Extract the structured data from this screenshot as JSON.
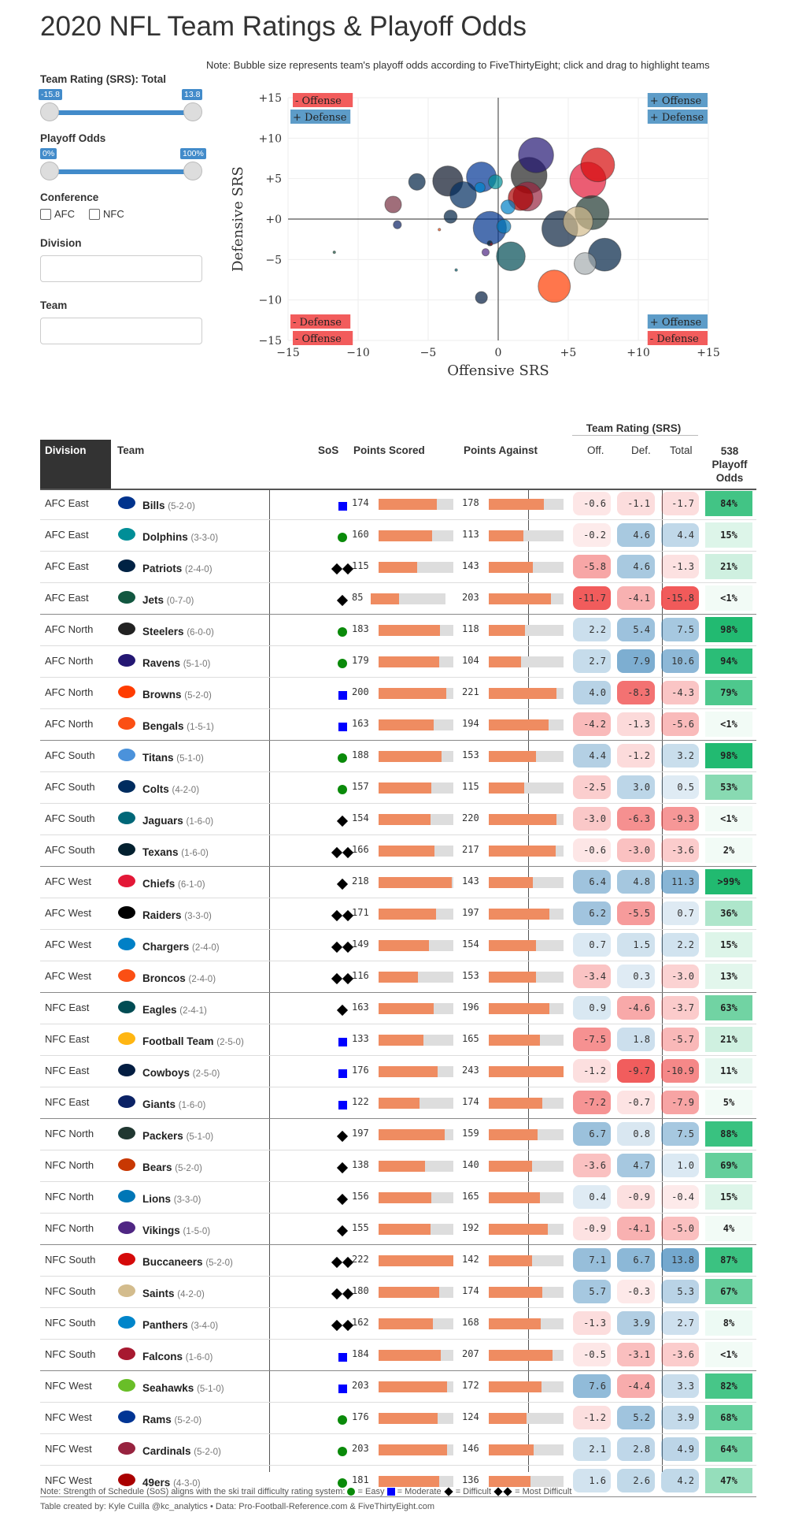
{
  "page": {
    "title": "2020 NFL Team Ratings & Playoff Odds",
    "note": "Note: Bubble size represents team's playoff odds according to FiveThirtyEight; click and drag to highlight teams"
  },
  "sidebar": {
    "rating_label": "Team Rating (SRS): Total",
    "rating_min": "-15.8",
    "rating_max": "13.8",
    "odds_label": "Playoff Odds",
    "odds_min": "0%",
    "odds_max": "100%",
    "conference_label": "Conference",
    "afc_label": "AFC",
    "nfc_label": "NFC",
    "division_label": "Division",
    "team_label": "Team"
  },
  "chart_data": {
    "type": "scatter",
    "xlabel": "Offensive SRS",
    "ylabel": "Defensive SRS",
    "xlim": [
      -15,
      15
    ],
    "ylim": [
      -15,
      15
    ],
    "x_ticks": [
      "−15",
      "−10",
      "−5",
      "0",
      "+5",
      "+10",
      "+15"
    ],
    "y_ticks": [
      "+15",
      "+10",
      "+5",
      "+0",
      "−5",
      "−10",
      "−15"
    ],
    "quadrant_labels": {
      "top_left": [
        "- Offense",
        "+ Defense"
      ],
      "top_right": [
        "+ Offense",
        "+ Defense"
      ],
      "bottom_left": [
        "- Defense",
        "- Offense"
      ],
      "bottom_right": [
        "+ Offense",
        "- Defense"
      ]
    },
    "points": [
      {
        "team": "Bills",
        "x": -0.6,
        "y": -1.1,
        "odds": 84,
        "color": "#00338d"
      },
      {
        "team": "Dolphins",
        "x": -0.2,
        "y": 4.6,
        "odds": 15,
        "color": "#008e97"
      },
      {
        "team": "Patriots",
        "x": -5.8,
        "y": 4.6,
        "odds": 21,
        "color": "#002244"
      },
      {
        "team": "Jets",
        "x": -11.7,
        "y": -4.1,
        "odds": 0.5,
        "color": "#125740"
      },
      {
        "team": "Steelers",
        "x": 2.2,
        "y": 5.4,
        "odds": 98,
        "color": "#222222"
      },
      {
        "team": "Ravens",
        "x": 2.7,
        "y": 7.9,
        "odds": 94,
        "color": "#241773"
      },
      {
        "team": "Browns",
        "x": 4.0,
        "y": -8.3,
        "odds": 79,
        "color": "#ff3c00"
      },
      {
        "team": "Bengals",
        "x": -4.2,
        "y": -1.3,
        "odds": 0.5,
        "color": "#fb4f14"
      },
      {
        "team": "Titans",
        "x": 4.4,
        "y": -1.2,
        "odds": 98,
        "color": "#0c2340"
      },
      {
        "team": "Colts",
        "x": -2.5,
        "y": 3.0,
        "odds": 53,
        "color": "#002c5f"
      },
      {
        "team": "Jaguars",
        "x": -3.0,
        "y": -6.3,
        "odds": 0.5,
        "color": "#006778"
      },
      {
        "team": "Texans",
        "x": -0.6,
        "y": -3.0,
        "odds": 2,
        "color": "#03202f"
      },
      {
        "team": "Chiefs",
        "x": 6.4,
        "y": 4.8,
        "odds": 99,
        "color": "#e31837"
      },
      {
        "team": "Raiders",
        "x": 6.2,
        "y": -5.5,
        "odds": 36,
        "color": "#a5acaf"
      },
      {
        "team": "Chargers",
        "x": 0.7,
        "y": 1.5,
        "odds": 15,
        "color": "#0080c6"
      },
      {
        "team": "Broncos",
        "x": -3.4,
        "y": 0.3,
        "odds": 13,
        "color": "#002244"
      },
      {
        "team": "Eagles",
        "x": 0.9,
        "y": -4.6,
        "odds": 63,
        "color": "#004c54"
      },
      {
        "team": "Football Team",
        "x": -7.5,
        "y": 1.8,
        "odds": 21,
        "color": "#773141"
      },
      {
        "team": "Cowboys",
        "x": -1.2,
        "y": -9.7,
        "odds": 11,
        "color": "#041e42"
      },
      {
        "team": "Giants",
        "x": -7.2,
        "y": -0.7,
        "odds": 5,
        "color": "#0b2265"
      },
      {
        "team": "Packers",
        "x": 6.7,
        "y": 0.8,
        "odds": 88,
        "color": "#203731"
      },
      {
        "team": "Bears",
        "x": -3.6,
        "y": 4.7,
        "odds": 69,
        "color": "#0b162a"
      },
      {
        "team": "Lions",
        "x": 0.4,
        "y": -0.9,
        "odds": 15,
        "color": "#0076b6"
      },
      {
        "team": "Vikings",
        "x": -0.9,
        "y": -4.1,
        "odds": 4,
        "color": "#4f2683"
      },
      {
        "team": "Buccaneers",
        "x": 7.1,
        "y": 6.7,
        "odds": 87,
        "color": "#d50a0a"
      },
      {
        "team": "Saints",
        "x": 5.7,
        "y": -0.3,
        "odds": 67,
        "color": "#d3bc8d"
      },
      {
        "team": "Panthers",
        "x": -1.3,
        "y": 3.9,
        "odds": 8,
        "color": "#0085ca"
      },
      {
        "team": "Falcons",
        "x": -0.5,
        "y": -3.1,
        "odds": 0.5,
        "color": "#a71930"
      },
      {
        "team": "Seahawks",
        "x": 7.6,
        "y": -4.4,
        "odds": 82,
        "color": "#002244"
      },
      {
        "team": "Rams",
        "x": -1.2,
        "y": 5.2,
        "odds": 68,
        "color": "#003594"
      },
      {
        "team": "Cardinals",
        "x": 2.1,
        "y": 2.8,
        "odds": 64,
        "color": "#97233f"
      },
      {
        "team": "49ers",
        "x": 1.6,
        "y": 2.6,
        "odds": 47,
        "color": "#aa0000"
      }
    ]
  },
  "table": {
    "group_header": "Team Rating (SRS)",
    "headers": {
      "division": "Division",
      "team": "Team",
      "sos": "SoS",
      "points_scored": "Points Scored",
      "points_against": "Points Against",
      "off": "Off.",
      "def": "Def.",
      "total": "Total",
      "odds": "538 Playoff Odds"
    },
    "rows": [
      {
        "division": "AFC East",
        "team": "Bills",
        "record": "(5-2-0)",
        "sos": "square",
        "ps": 174,
        "pa": 178,
        "off": "-0.6",
        "def": "-1.1",
        "total": "-1.7",
        "odds": "84%",
        "odds_val": 84,
        "logo": "#00338d"
      },
      {
        "division": "AFC East",
        "team": "Dolphins",
        "record": "(3-3-0)",
        "sos": "circle",
        "ps": 160,
        "pa": 113,
        "off": "-0.2",
        "def": "4.6",
        "total": "4.4",
        "odds": "15%",
        "odds_val": 15,
        "logo": "#008e97"
      },
      {
        "division": "AFC East",
        "team": "Patriots",
        "record": "(2-4-0)",
        "sos": "double",
        "ps": 115,
        "pa": 143,
        "off": "-5.8",
        "def": "4.6",
        "total": "-1.3",
        "odds": "21%",
        "odds_val": 21,
        "logo": "#002244"
      },
      {
        "division": "AFC East",
        "team": "Jets",
        "record": "(0-7-0)",
        "sos": "diamond",
        "ps": 85,
        "pa": 203,
        "off": "-11.7",
        "def": "-4.1",
        "total": "-15.8",
        "odds": "<1%",
        "odds_val": 0,
        "logo": "#125740"
      },
      {
        "division": "AFC North",
        "team": "Steelers",
        "record": "(6-0-0)",
        "sos": "circle",
        "ps": 183,
        "pa": 118,
        "off": "2.2",
        "def": "5.4",
        "total": "7.5",
        "odds": "98%",
        "odds_val": 98,
        "logo": "#222222"
      },
      {
        "division": "AFC North",
        "team": "Ravens",
        "record": "(5-1-0)",
        "sos": "circle",
        "ps": 179,
        "pa": 104,
        "off": "2.7",
        "def": "7.9",
        "total": "10.6",
        "odds": "94%",
        "odds_val": 94,
        "logo": "#241773"
      },
      {
        "division": "AFC North",
        "team": "Browns",
        "record": "(5-2-0)",
        "sos": "square",
        "ps": 200,
        "pa": 221,
        "off": "4.0",
        "def": "-8.3",
        "total": "-4.3",
        "odds": "79%",
        "odds_val": 79,
        "logo": "#ff3c00"
      },
      {
        "division": "AFC North",
        "team": "Bengals",
        "record": "(1-5-1)",
        "sos": "square",
        "ps": 163,
        "pa": 194,
        "off": "-4.2",
        "def": "-1.3",
        "total": "-5.6",
        "odds": "<1%",
        "odds_val": 0,
        "logo": "#fb4f14"
      },
      {
        "division": "AFC South",
        "team": "Titans",
        "record": "(5-1-0)",
        "sos": "circle",
        "ps": 188,
        "pa": 153,
        "off": "4.4",
        "def": "-1.2",
        "total": "3.2",
        "odds": "98%",
        "odds_val": 98,
        "logo": "#4b92db"
      },
      {
        "division": "AFC South",
        "team": "Colts",
        "record": "(4-2-0)",
        "sos": "circle",
        "ps": 157,
        "pa": 115,
        "off": "-2.5",
        "def": "3.0",
        "total": "0.5",
        "odds": "53%",
        "odds_val": 53,
        "logo": "#002c5f"
      },
      {
        "division": "AFC South",
        "team": "Jaguars",
        "record": "(1-6-0)",
        "sos": "diamond",
        "ps": 154,
        "pa": 220,
        "off": "-3.0",
        "def": "-6.3",
        "total": "-9.3",
        "odds": "<1%",
        "odds_val": 0,
        "logo": "#006778"
      },
      {
        "division": "AFC South",
        "team": "Texans",
        "record": "(1-6-0)",
        "sos": "double",
        "ps": 166,
        "pa": 217,
        "off": "-0.6",
        "def": "-3.0",
        "total": "-3.6",
        "odds": "2%",
        "odds_val": 2,
        "logo": "#03202f"
      },
      {
        "division": "AFC West",
        "team": "Chiefs",
        "record": "(6-1-0)",
        "sos": "diamond",
        "ps": 218,
        "pa": 143,
        "off": "6.4",
        "def": "4.8",
        "total": "11.3",
        "odds": ">99%",
        "odds_val": 99,
        "logo": "#e31837"
      },
      {
        "division": "AFC West",
        "team": "Raiders",
        "record": "(3-3-0)",
        "sos": "double",
        "ps": 171,
        "pa": 197,
        "off": "6.2",
        "def": "-5.5",
        "total": "0.7",
        "odds": "36%",
        "odds_val": 36,
        "logo": "#000000"
      },
      {
        "division": "AFC West",
        "team": "Chargers",
        "record": "(2-4-0)",
        "sos": "double",
        "ps": 149,
        "pa": 154,
        "off": "0.7",
        "def": "1.5",
        "total": "2.2",
        "odds": "15%",
        "odds_val": 15,
        "logo": "#0080c6"
      },
      {
        "division": "AFC West",
        "team": "Broncos",
        "record": "(2-4-0)",
        "sos": "double",
        "ps": 116,
        "pa": 153,
        "off": "-3.4",
        "def": "0.3",
        "total": "-3.0",
        "odds": "13%",
        "odds_val": 13,
        "logo": "#fb4f14"
      },
      {
        "division": "NFC East",
        "team": "Eagles",
        "record": "(2-4-1)",
        "sos": "diamond",
        "ps": 163,
        "pa": 196,
        "off": "0.9",
        "def": "-4.6",
        "total": "-3.7",
        "odds": "63%",
        "odds_val": 63,
        "logo": "#004c54"
      },
      {
        "division": "NFC East",
        "team": "Football Team",
        "record": "(2-5-0)",
        "sos": "square",
        "ps": 133,
        "pa": 165,
        "off": "-7.5",
        "def": "1.8",
        "total": "-5.7",
        "odds": "21%",
        "odds_val": 21,
        "logo": "#ffb612"
      },
      {
        "division": "NFC East",
        "team": "Cowboys",
        "record": "(2-5-0)",
        "sos": "square",
        "ps": 176,
        "pa": 243,
        "off": "-1.2",
        "def": "-9.7",
        "total": "-10.9",
        "odds": "11%",
        "odds_val": 11,
        "logo": "#041e42"
      },
      {
        "division": "NFC East",
        "team": "Giants",
        "record": "(1-6-0)",
        "sos": "square",
        "ps": 122,
        "pa": 174,
        "off": "-7.2",
        "def": "-0.7",
        "total": "-7.9",
        "odds": "5%",
        "odds_val": 5,
        "logo": "#0b2265"
      },
      {
        "division": "NFC North",
        "team": "Packers",
        "record": "(5-1-0)",
        "sos": "diamond",
        "ps": 197,
        "pa": 159,
        "off": "6.7",
        "def": "0.8",
        "total": "7.5",
        "odds": "88%",
        "odds_val": 88,
        "logo": "#203731"
      },
      {
        "division": "NFC North",
        "team": "Bears",
        "record": "(5-2-0)",
        "sos": "diamond",
        "ps": 138,
        "pa": 140,
        "off": "-3.6",
        "def": "4.7",
        "total": "1.0",
        "odds": "69%",
        "odds_val": 69,
        "logo": "#c83803"
      },
      {
        "division": "NFC North",
        "team": "Lions",
        "record": "(3-3-0)",
        "sos": "diamond",
        "ps": 156,
        "pa": 165,
        "off": "0.4",
        "def": "-0.9",
        "total": "-0.4",
        "odds": "15%",
        "odds_val": 15,
        "logo": "#0076b6"
      },
      {
        "division": "NFC North",
        "team": "Vikings",
        "record": "(1-5-0)",
        "sos": "diamond",
        "ps": 155,
        "pa": 192,
        "off": "-0.9",
        "def": "-4.1",
        "total": "-5.0",
        "odds": "4%",
        "odds_val": 4,
        "logo": "#4f2683"
      },
      {
        "division": "NFC South",
        "team": "Buccaneers",
        "record": "(5-2-0)",
        "sos": "double",
        "ps": 222,
        "pa": 142,
        "off": "7.1",
        "def": "6.7",
        "total": "13.8",
        "odds": "87%",
        "odds_val": 87,
        "logo": "#d50a0a"
      },
      {
        "division": "NFC South",
        "team": "Saints",
        "record": "(4-2-0)",
        "sos": "double",
        "ps": 180,
        "pa": 174,
        "off": "5.7",
        "def": "-0.3",
        "total": "5.3",
        "odds": "67%",
        "odds_val": 67,
        "logo": "#d3bc8d"
      },
      {
        "division": "NFC South",
        "team": "Panthers",
        "record": "(3-4-0)",
        "sos": "double",
        "ps": 162,
        "pa": 168,
        "off": "-1.3",
        "def": "3.9",
        "total": "2.7",
        "odds": "8%",
        "odds_val": 8,
        "logo": "#0085ca"
      },
      {
        "division": "NFC South",
        "team": "Falcons",
        "record": "(1-6-0)",
        "sos": "square",
        "ps": 184,
        "pa": 207,
        "off": "-0.5",
        "def": "-3.1",
        "total": "-3.6",
        "odds": "<1%",
        "odds_val": 0,
        "logo": "#a71930"
      },
      {
        "division": "NFC West",
        "team": "Seahawks",
        "record": "(5-1-0)",
        "sos": "square",
        "ps": 203,
        "pa": 172,
        "off": "7.6",
        "def": "-4.4",
        "total": "3.3",
        "odds": "82%",
        "odds_val": 82,
        "logo": "#69be28"
      },
      {
        "division": "NFC West",
        "team": "Rams",
        "record": "(5-2-0)",
        "sos": "circle",
        "ps": 176,
        "pa": 124,
        "off": "-1.2",
        "def": "5.2",
        "total": "3.9",
        "odds": "68%",
        "odds_val": 68,
        "logo": "#003594"
      },
      {
        "division": "NFC West",
        "team": "Cardinals",
        "record": "(5-2-0)",
        "sos": "circle",
        "ps": 203,
        "pa": 146,
        "off": "2.1",
        "def": "2.8",
        "total": "4.9",
        "odds": "64%",
        "odds_val": 64,
        "logo": "#97233f"
      },
      {
        "division": "NFC West",
        "team": "49ers",
        "record": "(4-3-0)",
        "sos": "circle",
        "ps": 181,
        "pa": 136,
        "off": "1.6",
        "def": "2.6",
        "total": "4.2",
        "odds": "47%",
        "odds_val": 47,
        "logo": "#aa0000"
      }
    ]
  },
  "footer": {
    "sos_note_prefix": "Note: Strength of Schedule (SoS) aligns with the ski trail difficulty rating system:",
    "easy": "= Easy",
    "moderate": "= Moderate",
    "difficult": "= Difficult",
    "most_difficult": "= Most Difficult",
    "credit": "Table created by: Kyle Cuilla @kc_analytics • Data: Pro-Football-Reference.com & FiveThirtyEight.com"
  }
}
